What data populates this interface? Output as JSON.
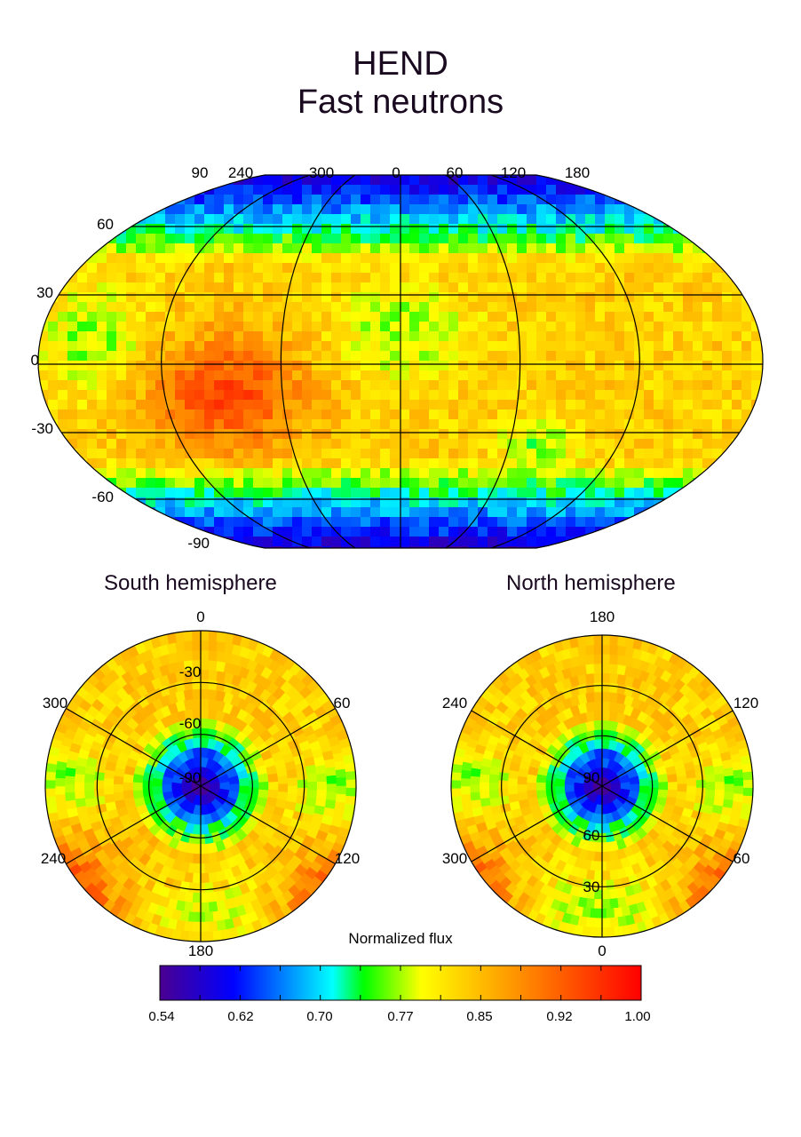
{
  "title": {
    "line1": "HEND",
    "line2": "Fast neutrons"
  },
  "global_map": {
    "lon_labels": [
      "90",
      "240",
      "300",
      "0",
      "60",
      "120",
      "180"
    ],
    "lat_labels": [
      "60",
      "30",
      "0",
      "-30",
      "-60",
      "-90"
    ]
  },
  "south": {
    "title": "South hemisphere",
    "lon_labels": {
      "top": "0",
      "right_upper": "60",
      "right_lower": "120",
      "bottom": "180",
      "left_lower": "240",
      "left_upper": "300"
    },
    "lat_labels": [
      "-30",
      "-60",
      "-90"
    ]
  },
  "north": {
    "title": "North hemisphere",
    "lon_labels": {
      "top": "180",
      "right_upper": "120",
      "right_lower": "60",
      "bottom": "0",
      "left_lower": "300",
      "left_upper": "240"
    },
    "lat_labels": [
      "90",
      "60",
      "30"
    ]
  },
  "colorbar": {
    "label": "Normalized flux",
    "ticks": [
      "0.54",
      "0.62",
      "0.70",
      "0.77",
      "0.85",
      "0.92",
      "1.00"
    ],
    "range": [
      0.54,
      1.0
    ],
    "stops": [
      {
        "v": 0.54,
        "color": "#4a0090"
      },
      {
        "v": 0.61,
        "color": "#0000ff"
      },
      {
        "v": 0.705,
        "color": "#00ffff"
      },
      {
        "v": 0.735,
        "color": "#00ff00"
      },
      {
        "v": 0.79,
        "color": "#ffff00"
      },
      {
        "v": 0.87,
        "color": "#ffa000"
      },
      {
        "v": 1.0,
        "color": "#ff0000"
      }
    ]
  }
}
